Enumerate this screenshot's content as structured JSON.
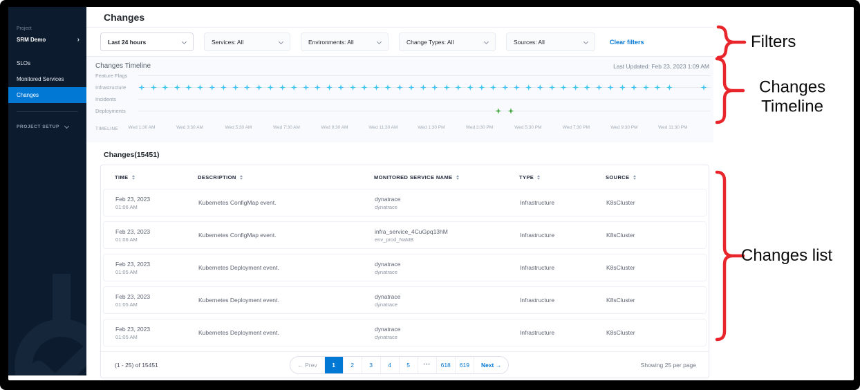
{
  "sidebar": {
    "project_label": "Project",
    "project_name": "SRM Demo",
    "items": [
      {
        "label": "SLOs",
        "active": false
      },
      {
        "label": "Monitored Services",
        "active": false
      },
      {
        "label": "Changes",
        "active": true
      }
    ],
    "project_setup_label": "PROJECT SETUP"
  },
  "header": {
    "title": "Changes"
  },
  "filters": {
    "time_range": "Last 24 hours",
    "dropdowns": [
      "Services: All",
      "Environments: All",
      "Change Types: All",
      "Sources: All"
    ],
    "clear_label": "Clear filters"
  },
  "timeline": {
    "title": "Changes Timeline",
    "last_updated": "Last Updated: Feb 23, 2023 1:09 AM",
    "axis_label": "TIMELINE",
    "rows": [
      {
        "label": "Feature Flags",
        "marker_color": "",
        "markers": []
      },
      {
        "label": "Infrastructure",
        "marker_color": "#41c4f1",
        "markers": [
          0.6,
          2.7,
          4.7,
          6.8,
          8.8,
          10.8,
          12.9,
          14.9,
          17.0,
          19.0,
          21.1,
          23.1,
          25.2,
          27.2,
          29.3,
          31.3,
          33.4,
          35.4,
          37.5,
          39.5,
          41.6,
          43.6,
          45.7,
          47.7,
          49.8,
          51.8,
          53.9,
          55.9,
          58.0,
          60.0,
          62.0,
          64.1,
          66.1,
          68.2,
          70.2,
          72.3,
          74.3,
          76.4,
          78.4,
          80.5,
          82.5,
          84.6,
          86.6,
          88.7,
          90.7,
          92.8,
          98.8
        ]
      },
      {
        "label": "Incidents",
        "marker_color": "",
        "markers": []
      },
      {
        "label": "Deployments",
        "marker_color": "#42a53f",
        "markers": [
          62.9,
          65.1
        ]
      }
    ],
    "ticks": [
      {
        "label": "Wed 1:30 AM",
        "x": 0.6
      },
      {
        "label": "Wed 3:30 AM",
        "x": 9.0
      },
      {
        "label": "Wed 5:30 AM",
        "x": 17.5
      },
      {
        "label": "Wed 7:30 AM",
        "x": 25.9
      },
      {
        "label": "Wed 9:30 AM",
        "x": 34.3
      },
      {
        "label": "Wed 11:30 AM",
        "x": 42.8
      },
      {
        "label": "Wed 1:30 PM",
        "x": 51.2
      },
      {
        "label": "Wed 3:30 PM",
        "x": 59.6
      },
      {
        "label": "Wed 5:30 PM",
        "x": 68.1
      },
      {
        "label": "Wed 7:30 PM",
        "x": 76.5
      },
      {
        "label": "Wed 9:30 PM",
        "x": 84.9
      },
      {
        "label": "Wed 11:30 PM",
        "x": 93.4
      }
    ]
  },
  "changes_list": {
    "heading": "Changes(15451)",
    "columns": [
      "TIME",
      "DESCRIPTION",
      "MONITORED SERVICE NAME",
      "TYPE",
      "SOURCE"
    ],
    "rows": [
      {
        "date": "Feb 23, 2023",
        "time": "01:06 AM",
        "description": "Kubernetes ConfigMap event.",
        "service": "dynatrace",
        "env": "dynatrace",
        "type": "Infrastructure",
        "source": "K8sCluster"
      },
      {
        "date": "Feb 23, 2023",
        "time": "01:06 AM",
        "description": "Kubernetes ConfigMap event.",
        "service": "infra_service_4CuGpq13hM",
        "env": "env_prod_NaMB",
        "type": "Infrastructure",
        "source": "K8sCluster"
      },
      {
        "date": "Feb 23, 2023",
        "time": "01:05 AM",
        "description": "Kubernetes Deployment event.",
        "service": "dynatrace",
        "env": "dynatrace",
        "type": "Infrastructure",
        "source": "K8sCluster"
      },
      {
        "date": "Feb 23, 2023",
        "time": "01:05 AM",
        "description": "Kubernetes Deployment event.",
        "service": "dynatrace",
        "env": "dynatrace",
        "type": "Infrastructure",
        "source": "K8sCluster"
      },
      {
        "date": "Feb 23, 2023",
        "time": "01:05 AM",
        "description": "Kubernetes Deployment event.",
        "service": "dynatrace",
        "env": "dynatrace",
        "type": "Infrastructure",
        "source": "K8sCluster"
      }
    ],
    "pagination": {
      "range": "(1 - 25) of 15451",
      "prev": "← Prev",
      "pages": [
        "1",
        "2",
        "3",
        "4",
        "5",
        "•••",
        "618",
        "619"
      ],
      "active_page": "1",
      "next": "Next →",
      "showing": "Showing 25 per page"
    }
  },
  "annotations": [
    {
      "lines": [
        "Filters"
      ]
    },
    {
      "lines": [
        "Changes",
        "Timeline"
      ]
    },
    {
      "lines": [
        "Changes list"
      ]
    }
  ],
  "colors": {
    "accent_blue": "#0278d5",
    "infrastructure_marker": "#41c4f1",
    "deployment_marker": "#42a53f",
    "annotation_red": "#e8252a",
    "sidebar_bg": "#0c1b2d"
  }
}
